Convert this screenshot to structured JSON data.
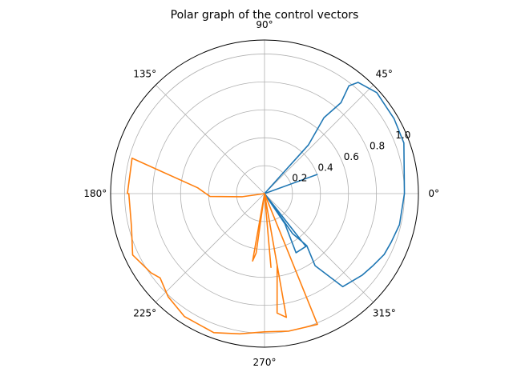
{
  "chart_data": {
    "type": "line",
    "projection": "polar",
    "title": "Polar graph of the control vectors",
    "angular_ticks": [
      {
        "deg": 0,
        "label": "0°"
      },
      {
        "deg": 45,
        "label": "45°"
      },
      {
        "deg": 90,
        "label": "90°"
      },
      {
        "deg": 135,
        "label": "135°"
      },
      {
        "deg": 180,
        "label": "180°"
      },
      {
        "deg": 225,
        "label": "225°"
      },
      {
        "deg": 270,
        "label": "270°"
      },
      {
        "deg": 315,
        "label": "315°"
      }
    ],
    "radial_ticks": [
      {
        "value": 0.2,
        "label": "0.2"
      },
      {
        "value": 0.4,
        "label": "0.4"
      },
      {
        "value": 0.6,
        "label": "0.6"
      },
      {
        "value": 0.8,
        "label": "0.8"
      },
      {
        "value": 1.0,
        "label": "1.0"
      }
    ],
    "rlim": [
      0,
      1.1
    ],
    "grid": true,
    "series": [
      {
        "color": "#1f77b4",
        "points": [
          [
            0,
            0
          ],
          [
            20,
            0.4
          ],
          [
            0,
            0
          ],
          [
            48,
            0.3
          ],
          [
            48,
            0.47
          ],
          [
            52,
            0.69
          ],
          [
            50,
            0.85
          ],
          [
            52,
            0.98
          ],
          [
            50,
            1.04
          ],
          [
            42,
            1.08
          ],
          [
            30,
            1.07
          ],
          [
            20,
            1.06
          ],
          [
            0,
            1.0
          ],
          [
            -13,
            0.99
          ],
          [
            -21,
            0.97
          ],
          [
            -27,
            0.96
          ],
          [
            -34,
            0.93
          ],
          [
            -40,
            0.91
          ],
          [
            -50,
            0.87
          ],
          [
            -55,
            0.63
          ],
          [
            -51,
            0.48
          ],
          [
            -55,
            0.35
          ],
          [
            0,
            0
          ],
          [
            -52,
            0.48
          ],
          [
            -62,
            0.48
          ],
          [
            -56,
            0.26
          ],
          [
            0,
            0
          ]
        ]
      },
      {
        "color": "#ff7f0e",
        "points": [
          [
            0,
            0
          ],
          [
            188,
            0.16
          ],
          [
            183,
            0.39
          ],
          [
            175,
            0.48
          ],
          [
            165,
            0.98
          ],
          [
            180,
            0.98
          ],
          [
            180,
            0.97
          ],
          [
            194,
            0.98
          ],
          [
            205,
            1.04
          ],
          [
            215,
            0.99
          ],
          [
            219,
            0.96
          ],
          [
            227,
            1.01
          ],
          [
            237,
            1.05
          ],
          [
            250,
            1.06
          ],
          [
            260,
            1.02
          ],
          [
            270,
            0.99
          ],
          [
            280,
            1.0
          ],
          [
            292,
            1.01
          ],
          [
            0,
            0
          ],
          [
            260,
            0.49
          ],
          [
            262,
            0.43
          ],
          [
            0,
            0
          ],
          [
            280,
            0.9
          ],
          [
            276,
            0.86
          ],
          [
            280,
            0.52
          ],
          [
            0,
            0
          ],
          [
            275,
            0.53
          ],
          [
            0,
            0
          ]
        ]
      }
    ]
  }
}
